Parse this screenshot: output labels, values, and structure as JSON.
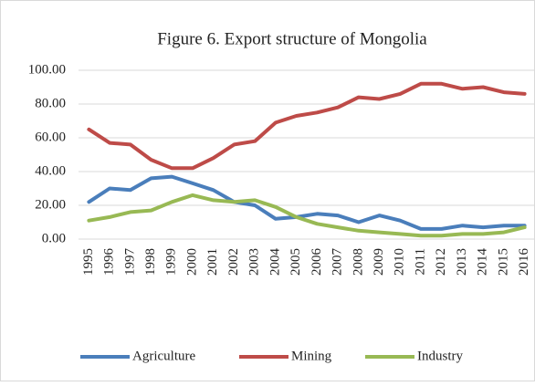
{
  "chart_data": {
    "type": "line",
    "title": "Figure 6. Export structure of Mongolia",
    "categories": [
      "1995",
      "1996",
      "1997",
      "1998",
      "1999",
      "2000",
      "2001",
      "2002",
      "2003",
      "2004",
      "2005",
      "2006",
      "2007",
      "2008",
      "2009",
      "2010",
      "2011",
      "2012",
      "2013",
      "2014",
      "2015",
      "2016"
    ],
    "series": [
      {
        "name": "Agriculture",
        "color": "#4a7ebb",
        "values": [
          22,
          30,
          29,
          36,
          37,
          33,
          29,
          22,
          20,
          12,
          13,
          15,
          14,
          10,
          14,
          11,
          6,
          6,
          8,
          7,
          8,
          8
        ]
      },
      {
        "name": "Mining",
        "color": "#be4b48",
        "values": [
          65,
          57,
          56,
          47,
          42,
          42,
          48,
          56,
          58,
          69,
          73,
          75,
          78,
          84,
          83,
          86,
          92,
          92,
          89,
          90,
          87,
          86
        ]
      },
      {
        "name": "Industry",
        "color": "#98b954",
        "values": [
          11,
          13,
          16,
          17,
          22,
          26,
          23,
          22,
          23,
          19,
          13,
          9,
          7,
          5,
          4,
          3,
          2,
          2,
          3,
          3,
          4,
          7
        ]
      }
    ],
    "ylim": [
      0,
      100
    ],
    "yticks": [
      {
        "value": 0,
        "label": "0.00"
      },
      {
        "value": 20,
        "label": "20.00"
      },
      {
        "value": 40,
        "label": "40.00"
      },
      {
        "value": 60,
        "label": "60.00"
      },
      {
        "value": 80,
        "label": "80.00"
      },
      {
        "value": 100,
        "label": "100.00"
      }
    ],
    "grid": true,
    "legend": "bottom"
  }
}
